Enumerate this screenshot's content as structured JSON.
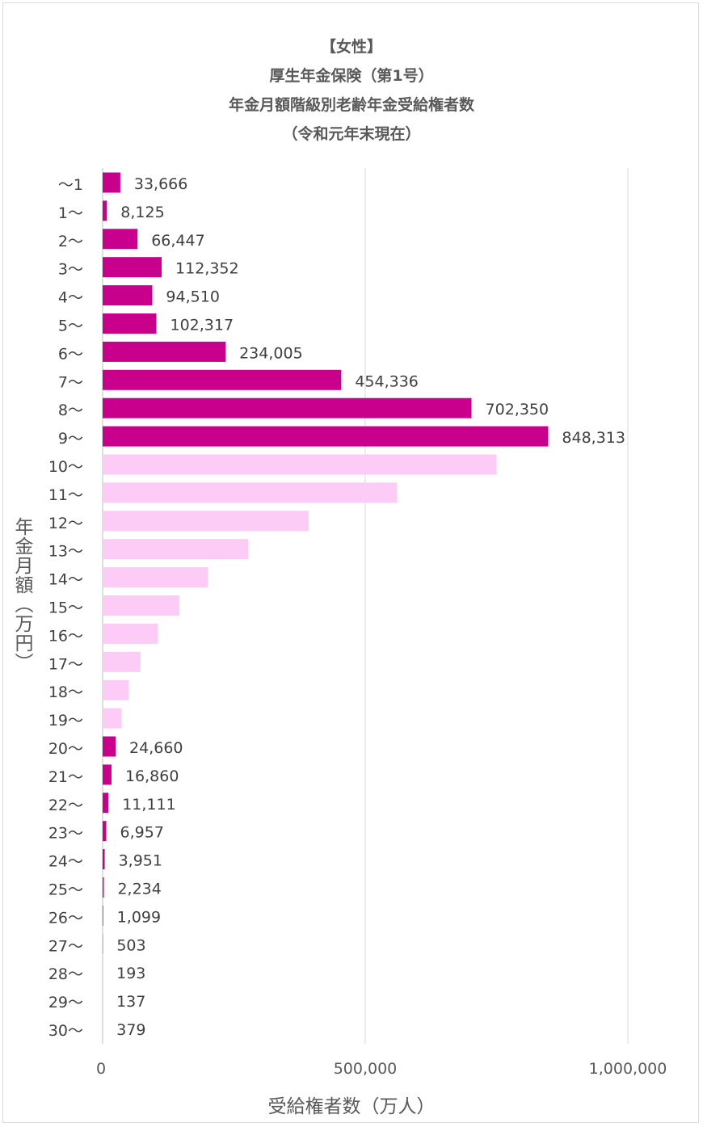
{
  "chart_data": {
    "type": "bar",
    "orientation": "horizontal",
    "title_lines": [
      "【女性】",
      "厚生年金保険（第1号）",
      "年金月額階級別老齢年金受給権者数",
      "（令和元年末現在）"
    ],
    "xlabel": "受給権者数（万人）",
    "ylabel": "年金月額（万円）",
    "xlim": [
      0,
      1000000
    ],
    "xticks": [
      0,
      500000,
      1000000
    ],
    "xtick_labels": [
      "0",
      "500,000",
      "1,000,000"
    ],
    "grid": true,
    "colors": {
      "highlight": "#C8008C",
      "muted": "#FCCCF6"
    },
    "categories": [
      "～1",
      "1～",
      "2～",
      "3～",
      "4～",
      "5～",
      "6～",
      "7～",
      "8～",
      "9～",
      "10～",
      "11～",
      "12～",
      "13～",
      "14～",
      "15～",
      "16～",
      "17～",
      "18～",
      "19～",
      "20～",
      "21～",
      "22～",
      "23～",
      "24～",
      "25～",
      "26～",
      "27～",
      "28～",
      "29～",
      "30～"
    ],
    "values": [
      33666,
      8125,
      66447,
      112352,
      94510,
      102317,
      234005,
      454336,
      702350,
      848313,
      750000,
      560000,
      392000,
      277000,
      200000,
      146000,
      105000,
      72000,
      50000,
      36000,
      24660,
      16860,
      11111,
      6957,
      3951,
      2234,
      1099,
      503,
      193,
      137,
      379
    ],
    "highlighted": [
      true,
      true,
      true,
      true,
      true,
      true,
      true,
      true,
      true,
      true,
      false,
      false,
      false,
      false,
      false,
      false,
      false,
      false,
      false,
      false,
      true,
      true,
      true,
      true,
      true,
      true,
      true,
      true,
      true,
      true,
      true
    ],
    "data_labels": [
      "33,666",
      "8,125",
      "66,447",
      "112,352",
      "94,510",
      "102,317",
      "234,005",
      "454,336",
      "702,350",
      "848,313",
      "",
      "",
      "",
      "",
      "",
      "",
      "",
      "",
      "",
      "",
      "24,660",
      "16,860",
      "11,111",
      "6,957",
      "3,951",
      "2,234",
      "1,099",
      "503",
      "193",
      "137",
      "379"
    ]
  }
}
